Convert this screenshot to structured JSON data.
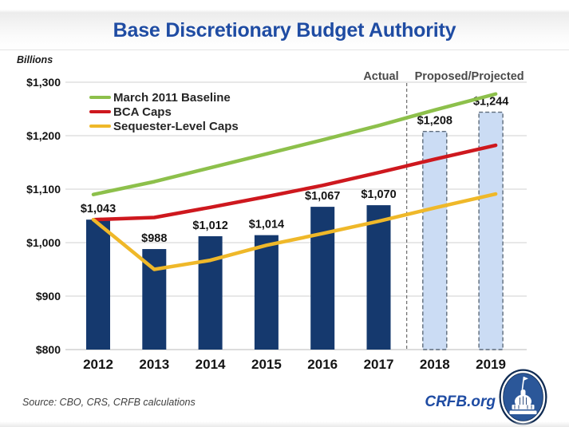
{
  "header": {
    "title": "Base Discretionary Budget Authority"
  },
  "axis": {
    "unit_label": "Billions"
  },
  "sections": {
    "actual_label": "Actual",
    "projected_label": "Proposed/Projected"
  },
  "footer": {
    "source_note": "Source: CBO, CRS, CRFB calculations",
    "brand": "CRFB.org"
  },
  "colors": {
    "title_blue": "#1F4CA3",
    "bar_navy": "#15396E",
    "projected_fill": "#CBDCF4",
    "projected_border": "#5E6B7A",
    "grid": "#DBDBDB",
    "grid_base": "#C6C6C6",
    "divider": "#6B6B6B",
    "section_label": "#4A4A4A",
    "label_text": "#141414",
    "brand_blue": "#1F4CA3",
    "source_gray": "#3F3F3F",
    "logo_navy": "#0E2A52",
    "logo_blue": "#2B5799"
  },
  "chart_data": {
    "type": "bar+line",
    "title": "Base Discretionary Budget Authority",
    "unit": "billions of dollars",
    "categories": [
      "2012",
      "2013",
      "2014",
      "2015",
      "2016",
      "2017",
      "2018",
      "2019"
    ],
    "bars": {
      "name": "Base discretionary budget authority",
      "values": [
        1043,
        988,
        1012,
        1014,
        1067,
        1070,
        1208,
        1244
      ],
      "labels": [
        "$1,043",
        "$988",
        "$1,012",
        "$1,014",
        "$1,067",
        "$1,070",
        "$1,208",
        "$1,244"
      ],
      "styles": [
        "actual",
        "actual",
        "actual",
        "actual",
        "actual",
        "actual",
        "projected",
        "projected"
      ]
    },
    "series": [
      {
        "name": "March 2011 Baseline",
        "color": "#8DC04B",
        "values": [
          1090,
          1114,
          1140,
          1166,
          1192,
          1219,
          1248,
          1278
        ]
      },
      {
        "name": "BCA Caps",
        "color": "#CE181E",
        "values": [
          1043,
          1047,
          1066,
          1086,
          1107,
          1131,
          1156,
          1182
        ]
      },
      {
        "name": "Sequester-Level Caps",
        "color": "#EFB829",
        "values": [
          1043,
          950,
          967,
          995,
          1017,
          1040,
          1065,
          1091
        ]
      }
    ],
    "ylim": [
      800,
      1300
    ],
    "yticks": [
      {
        "label": "$1,300",
        "value": 1300
      },
      {
        "label": "$1,200",
        "value": 1200
      },
      {
        "label": "$1,100",
        "value": 1100
      },
      {
        "label": "$1,000",
        "value": 1000
      },
      {
        "label": "$900",
        "value": 900
      },
      {
        "label": "$800",
        "value": 800
      }
    ],
    "grid": true,
    "legend_position": "top-left",
    "divider_after_index": 5
  }
}
